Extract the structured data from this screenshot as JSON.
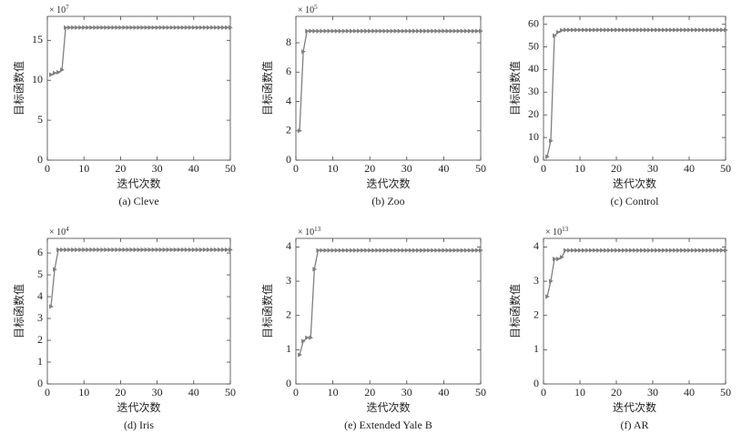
{
  "chart_data": [
    {
      "type": "line",
      "caption": "(a) Cleve",
      "xlabel": "迭代次数",
      "ylabel": "目标函数值",
      "scale_base": "× 10",
      "scale_exponent": "7",
      "color": "#808080",
      "marker": "triangle",
      "xlim": [
        0,
        50
      ],
      "xticks": [
        0,
        10,
        20,
        30,
        40,
        50
      ],
      "ylim": [
        0,
        18
      ],
      "yticks": [
        0,
        5,
        10,
        15
      ],
      "x": [
        1,
        2,
        3,
        4,
        5,
        6,
        7,
        8,
        9,
        10,
        11,
        12,
        13,
        14,
        15,
        16,
        17,
        18,
        19,
        20,
        21,
        22,
        23,
        24,
        25,
        26,
        27,
        28,
        29,
        30,
        31,
        32,
        33,
        34,
        35,
        36,
        37,
        38,
        39,
        40,
        41,
        42,
        43,
        44,
        45,
        46,
        47,
        48,
        49,
        50
      ],
      "values": [
        10.7,
        10.9,
        11.0,
        11.3,
        16.6,
        16.6,
        16.6,
        16.6,
        16.6,
        16.6,
        16.6,
        16.6,
        16.6,
        16.6,
        16.6,
        16.6,
        16.6,
        16.6,
        16.6,
        16.6,
        16.6,
        16.6,
        16.6,
        16.6,
        16.6,
        16.6,
        16.6,
        16.6,
        16.6,
        16.6,
        16.6,
        16.6,
        16.6,
        16.6,
        16.6,
        16.6,
        16.6,
        16.6,
        16.6,
        16.6,
        16.6,
        16.6,
        16.6,
        16.6,
        16.6,
        16.6,
        16.6,
        16.6,
        16.6,
        16.6
      ]
    },
    {
      "type": "line",
      "caption": "(b) Zoo",
      "xlabel": "迭代次数",
      "ylabel": "目标函数值",
      "scale_base": "× 10",
      "scale_exponent": "5",
      "color": "#808080",
      "marker": "triangle",
      "xlim": [
        0,
        50
      ],
      "xticks": [
        0,
        10,
        20,
        30,
        40,
        50
      ],
      "ylim": [
        0,
        9.8
      ],
      "yticks": [
        0,
        2,
        4,
        6,
        8
      ],
      "x": [
        1,
        2,
        3,
        4,
        5,
        6,
        7,
        8,
        9,
        10,
        11,
        12,
        13,
        14,
        15,
        16,
        17,
        18,
        19,
        20,
        21,
        22,
        23,
        24,
        25,
        26,
        27,
        28,
        29,
        30,
        31,
        32,
        33,
        34,
        35,
        36,
        37,
        38,
        39,
        40,
        41,
        42,
        43,
        44,
        45,
        46,
        47,
        48,
        49,
        50
      ],
      "values": [
        2.0,
        7.4,
        8.8,
        8.8,
        8.8,
        8.8,
        8.8,
        8.8,
        8.8,
        8.8,
        8.8,
        8.8,
        8.8,
        8.8,
        8.8,
        8.8,
        8.8,
        8.8,
        8.8,
        8.8,
        8.8,
        8.8,
        8.8,
        8.8,
        8.8,
        8.8,
        8.8,
        8.8,
        8.8,
        8.8,
        8.8,
        8.8,
        8.8,
        8.8,
        8.8,
        8.8,
        8.8,
        8.8,
        8.8,
        8.8,
        8.8,
        8.8,
        8.8,
        8.8,
        8.8,
        8.8,
        8.8,
        8.8,
        8.8,
        8.8
      ]
    },
    {
      "type": "line",
      "caption": "(c) Control",
      "xlabel": "迭代次数",
      "ylabel": "目标函数值",
      "color": "#808080",
      "marker": "triangle",
      "xlim": [
        0,
        50
      ],
      "xticks": [
        0,
        10,
        20,
        30,
        40,
        50
      ],
      "ylim": [
        0,
        63.5
      ],
      "yticks": [
        0,
        10,
        20,
        30,
        40,
        50,
        60
      ],
      "x": [
        1,
        2,
        3,
        4,
        5,
        6,
        7,
        8,
        9,
        10,
        11,
        12,
        13,
        14,
        15,
        16,
        17,
        18,
        19,
        20,
        21,
        22,
        23,
        24,
        25,
        26,
        27,
        28,
        29,
        30,
        31,
        32,
        33,
        34,
        35,
        36,
        37,
        38,
        39,
        40,
        41,
        42,
        43,
        44,
        45,
        46,
        47,
        48,
        49,
        50
      ],
      "values": [
        1.5,
        8.5,
        55,
        56.5,
        57.3,
        57.5,
        57.5,
        57.5,
        57.5,
        57.5,
        57.5,
        57.5,
        57.5,
        57.5,
        57.5,
        57.5,
        57.5,
        57.5,
        57.5,
        57.5,
        57.5,
        57.5,
        57.5,
        57.5,
        57.5,
        57.5,
        57.5,
        57.5,
        57.5,
        57.5,
        57.5,
        57.5,
        57.5,
        57.5,
        57.5,
        57.5,
        57.5,
        57.5,
        57.5,
        57.5,
        57.5,
        57.5,
        57.5,
        57.5,
        57.5,
        57.5,
        57.5,
        57.5,
        57.5,
        57.5
      ]
    },
    {
      "type": "line",
      "caption": "(d) Iris",
      "xlabel": "迭代次数",
      "ylabel": "目标函数值",
      "scale_base": "× 10",
      "scale_exponent": "4",
      "color": "#808080",
      "marker": "triangle",
      "xlim": [
        0,
        50
      ],
      "xticks": [
        0,
        10,
        20,
        30,
        40,
        50
      ],
      "ylim": [
        0,
        6.67
      ],
      "yticks": [
        0,
        1,
        2,
        3,
        4,
        5,
        6
      ],
      "x": [
        1,
        2,
        3,
        4,
        5,
        6,
        7,
        8,
        9,
        10,
        11,
        12,
        13,
        14,
        15,
        16,
        17,
        18,
        19,
        20,
        21,
        22,
        23,
        24,
        25,
        26,
        27,
        28,
        29,
        30,
        31,
        32,
        33,
        34,
        35,
        36,
        37,
        38,
        39,
        40,
        41,
        42,
        43,
        44,
        45,
        46,
        47,
        48,
        49,
        50
      ],
      "values": [
        3.55,
        5.25,
        6.15,
        6.15,
        6.15,
        6.15,
        6.15,
        6.15,
        6.15,
        6.15,
        6.15,
        6.15,
        6.15,
        6.15,
        6.15,
        6.15,
        6.15,
        6.15,
        6.15,
        6.15,
        6.15,
        6.15,
        6.15,
        6.15,
        6.15,
        6.15,
        6.15,
        6.15,
        6.15,
        6.15,
        6.15,
        6.15,
        6.15,
        6.15,
        6.15,
        6.15,
        6.15,
        6.15,
        6.15,
        6.15,
        6.15,
        6.15,
        6.15,
        6.15,
        6.15,
        6.15,
        6.15,
        6.15,
        6.15,
        6.15
      ]
    },
    {
      "type": "line",
      "caption": "(e) Extended Yale B",
      "xlabel": "迭代次数",
      "ylabel": "目标函数值",
      "scale_base": "× 10",
      "scale_exponent": "13",
      "color": "#808080",
      "marker": "triangle",
      "xlim": [
        0,
        50
      ],
      "xticks": [
        0,
        10,
        20,
        30,
        40,
        50
      ],
      "ylim": [
        0,
        4.25
      ],
      "yticks": [
        0,
        1,
        2,
        3,
        4
      ],
      "x": [
        1,
        2,
        3,
        4,
        5,
        6,
        7,
        8,
        9,
        10,
        11,
        12,
        13,
        14,
        15,
        16,
        17,
        18,
        19,
        20,
        21,
        22,
        23,
        24,
        25,
        26,
        27,
        28,
        29,
        30,
        31,
        32,
        33,
        34,
        35,
        36,
        37,
        38,
        39,
        40,
        41,
        42,
        43,
        44,
        45,
        46,
        47,
        48,
        49,
        50
      ],
      "values": [
        0.85,
        1.25,
        1.35,
        1.35,
        3.35,
        3.9,
        3.9,
        3.9,
        3.9,
        3.9,
        3.9,
        3.9,
        3.9,
        3.9,
        3.9,
        3.9,
        3.9,
        3.9,
        3.9,
        3.9,
        3.9,
        3.9,
        3.9,
        3.9,
        3.9,
        3.9,
        3.9,
        3.9,
        3.9,
        3.9,
        3.9,
        3.9,
        3.9,
        3.9,
        3.9,
        3.9,
        3.9,
        3.9,
        3.9,
        3.9,
        3.9,
        3.9,
        3.9,
        3.9,
        3.9,
        3.9,
        3.9,
        3.9,
        3.9,
        3.9
      ]
    },
    {
      "type": "line",
      "caption": "(f) AR",
      "xlabel": "迭代次数",
      "ylabel": "目标函数值",
      "scale_base": "× 10",
      "scale_exponent": "13",
      "color": "#808080",
      "marker": "triangle",
      "xlim": [
        0,
        50
      ],
      "xticks": [
        0,
        10,
        20,
        30,
        40,
        50
      ],
      "ylim": [
        0,
        4.25
      ],
      "yticks": [
        0,
        1,
        2,
        3,
        4
      ],
      "x": [
        1,
        2,
        3,
        4,
        5,
        6,
        7,
        8,
        9,
        10,
        11,
        12,
        13,
        14,
        15,
        16,
        17,
        18,
        19,
        20,
        21,
        22,
        23,
        24,
        25,
        26,
        27,
        28,
        29,
        30,
        31,
        32,
        33,
        34,
        35,
        36,
        37,
        38,
        39,
        40,
        41,
        42,
        43,
        44,
        45,
        46,
        47,
        48,
        49,
        50
      ],
      "values": [
        2.55,
        3.0,
        3.65,
        3.65,
        3.7,
        3.9,
        3.9,
        3.9,
        3.9,
        3.9,
        3.9,
        3.9,
        3.9,
        3.9,
        3.9,
        3.9,
        3.9,
        3.9,
        3.9,
        3.9,
        3.9,
        3.9,
        3.9,
        3.9,
        3.9,
        3.9,
        3.9,
        3.9,
        3.9,
        3.9,
        3.9,
        3.9,
        3.9,
        3.9,
        3.9,
        3.9,
        3.9,
        3.9,
        3.9,
        3.9,
        3.9,
        3.9,
        3.9,
        3.9,
        3.9,
        3.9,
        3.9,
        3.9,
        3.9,
        3.9
      ]
    }
  ]
}
